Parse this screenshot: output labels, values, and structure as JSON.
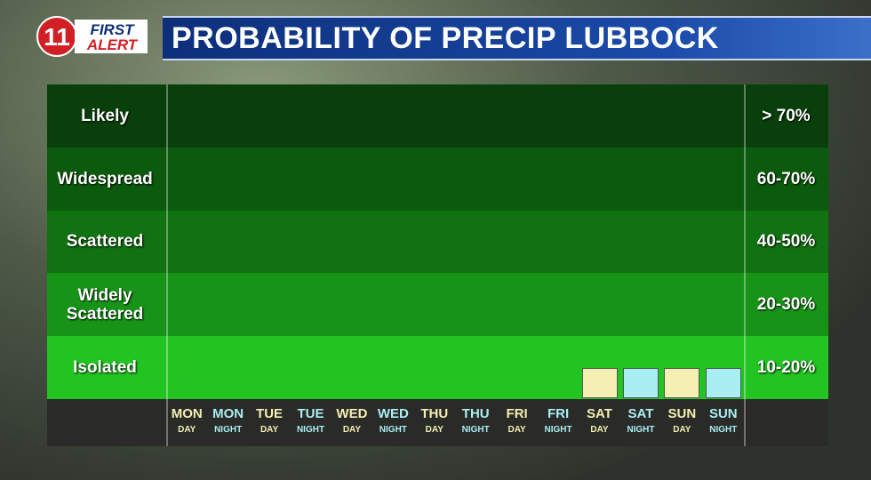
{
  "logo": {
    "number": "11",
    "line1": "FIRST",
    "line2": "ALERT"
  },
  "chart_data": {
    "type": "bar",
    "title": "PROBABILITY OF PRECIP LUBBOCK",
    "bands": [
      {
        "name": "Isolated",
        "range": "10-20%",
        "color": "#22c422"
      },
      {
        "name": "Widely Scattered",
        "range": "20-30%",
        "color": "#179418"
      },
      {
        "name": "Scattered",
        "range": "40-50%",
        "color": "#107210"
      },
      {
        "name": "Widespread",
        "range": "60-70%",
        "color": "#0c5a0d"
      },
      {
        "name": "Likely",
        "range": "> 70%",
        "color": "#093f0a"
      }
    ],
    "categories": [
      "MON",
      "MON",
      "TUE",
      "TUE",
      "WED",
      "WED",
      "THU",
      "THU",
      "FRI",
      "FRI",
      "SAT",
      "SAT",
      "SUN",
      "SUN"
    ],
    "periods": [
      "DAY",
      "NIGHT",
      "DAY",
      "NIGHT",
      "DAY",
      "NIGHT",
      "DAY",
      "NIGHT",
      "DAY",
      "NIGHT",
      "DAY",
      "NIGHT",
      "DAY",
      "NIGHT"
    ],
    "values": [
      null,
      null,
      null,
      null,
      null,
      null,
      null,
      null,
      null,
      null,
      0.5,
      0.5,
      0.5,
      0.5
    ],
    "colors": [
      "#f3f0b2",
      "#a9eef2",
      "#f3f0b2",
      "#a9eef2",
      "#f3f0b2",
      "#a9eef2",
      "#f3f0b2",
      "#a9eef2",
      "#f3f0b2",
      "#a9eef2",
      "#f3f0b2",
      "#a9eef2",
      "#f3f0b2",
      "#a9eef2"
    ],
    "category_color_day": "#f3f0b2",
    "category_color_night": "#a9eef2",
    "ylim": [
      0,
      5
    ]
  }
}
